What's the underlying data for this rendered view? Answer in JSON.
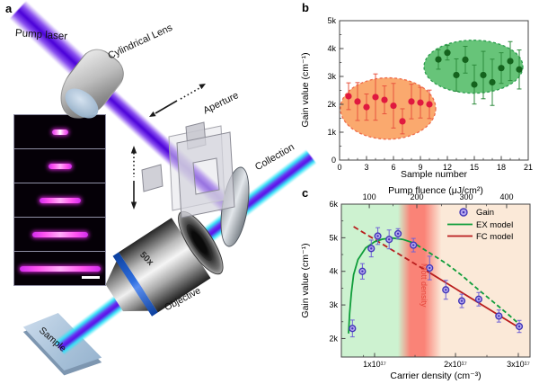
{
  "figure": {
    "panel_a": {
      "label": "a",
      "labels": {
        "pump_laser": "Pump laser",
        "cylindrical_lens": "Cylindrical Lens",
        "aperture": "Aperture",
        "collection": "Collection",
        "objective_mag": "50x",
        "objective": "Objective",
        "sample": "Sample"
      },
      "inset": {
        "stripe_count": 5,
        "has_scale_bar": true
      }
    },
    "panel_b": {
      "label": "b"
    },
    "panel_c": {
      "label": "c"
    }
  },
  "colors": {
    "beam_purple": "#5a10e8",
    "beam_cyan": "#35e3f7",
    "red_point": "#e0193f",
    "orange_ellipse": "#f9a05e",
    "green_point": "#14631d",
    "green_ellipse": "#5abf6e",
    "gain_marker_fill": "#b7a8ef",
    "gain_marker_stroke": "#4338b8",
    "ex_green": "#0f9d3a",
    "fc_red": "#b91d1d"
  },
  "chart_data": [
    {
      "id": "b",
      "type": "scatter",
      "xlabel": "Sample number",
      "ylabel": "Gain value (cm⁻¹)",
      "xlim": [
        0,
        21
      ],
      "ylim": [
        0,
        5000
      ],
      "grid": false,
      "x_ticks": [
        {
          "v": 0,
          "label": "0"
        },
        {
          "v": 3,
          "label": "3"
        },
        {
          "v": 6,
          "label": "6"
        },
        {
          "v": 9,
          "label": "9"
        },
        {
          "v": 12,
          "label": "12"
        },
        {
          "v": 15,
          "label": "15"
        },
        {
          "v": 18,
          "label": "18"
        },
        {
          "v": 21,
          "label": "21"
        }
      ],
      "y_ticks": [
        {
          "v": 0,
          "label": "0"
        },
        {
          "v": 1000,
          "label": "1k"
        },
        {
          "v": 2000,
          "label": "2k"
        },
        {
          "v": 3000,
          "label": "3k"
        },
        {
          "v": 4000,
          "label": "4k"
        },
        {
          "v": 5000,
          "label": "5k"
        }
      ],
      "series": [
        {
          "name": "samples 1-10",
          "marker_color": "#e0193f",
          "err_color": "#e8543f",
          "points": [
            {
              "x": 1,
              "y": 2290,
              "e": 480
            },
            {
              "x": 2,
              "y": 2100,
              "e": 680
            },
            {
              "x": 3,
              "y": 1900,
              "e": 470
            },
            {
              "x": 4,
              "y": 2260,
              "e": 830
            },
            {
              "x": 5,
              "y": 2160,
              "e": 500
            },
            {
              "x": 6,
              "y": 1950,
              "e": 800
            },
            {
              "x": 7,
              "y": 1390,
              "e": 450
            },
            {
              "x": 8,
              "y": 2100,
              "e": 620
            },
            {
              "x": 9,
              "y": 2060,
              "e": 550
            },
            {
              "x": 10,
              "y": 2000,
              "e": 510
            }
          ]
        },
        {
          "name": "samples 11-20",
          "marker_color": "#14631d",
          "err_color": "#2e8b3d",
          "points": [
            {
              "x": 11,
              "y": 3610,
              "e": 350
            },
            {
              "x": 12,
              "y": 3850,
              "e": 260
            },
            {
              "x": 13,
              "y": 3050,
              "e": 580
            },
            {
              "x": 14,
              "y": 3600,
              "e": 480
            },
            {
              "x": 15,
              "y": 2710,
              "e": 700
            },
            {
              "x": 16,
              "y": 3050,
              "e": 850
            },
            {
              "x": 17,
              "y": 2790,
              "e": 830
            },
            {
              "x": 18,
              "y": 3300,
              "e": 550
            },
            {
              "x": 19,
              "y": 3550,
              "e": 700
            },
            {
              "x": 20,
              "y": 3250,
              "e": 700
            }
          ]
        }
      ],
      "ellipses": [
        {
          "cx": 5.4,
          "cy": 1850,
          "rx": 5.3,
          "ry": 1100,
          "fill": "#f9a05e",
          "stroke": "#ef6a4a",
          "opacity": 0.9
        },
        {
          "cx": 14.9,
          "cy": 3350,
          "rx": 5.5,
          "ry": 950,
          "fill": "#5abf6e",
          "stroke": "#2d9e4f",
          "opacity": 0.92
        }
      ]
    },
    {
      "id": "c",
      "type": "scatter+line",
      "top_xlabel": "Pump fluence (μJ/cm²)",
      "xlabel": "Carrier density (cm⁻³)",
      "ylabel": "Gain value (cm⁻¹)",
      "x_unit": "×10¹⁷ cm⁻³",
      "ylim": [
        1450,
        6000
      ],
      "grid": false,
      "y_ticks": [
        {
          "v": 2000,
          "label": "2k"
        },
        {
          "v": 3000,
          "label": "3k"
        },
        {
          "v": 4000,
          "label": "4k"
        },
        {
          "v": 5000,
          "label": "5k"
        },
        {
          "v": 6000,
          "label": "6k"
        }
      ],
      "x_ticks": [
        {
          "v": 1,
          "label": "1x10¹⁷"
        },
        {
          "v": 2,
          "label": "2x10¹⁷"
        },
        {
          "v": 3,
          "label": "3x10¹⁷"
        }
      ],
      "x_minor_ticks": [
        0.9,
        1.5,
        2.5
      ],
      "top_ticks": [
        {
          "label": "100",
          "f": 0.148
        },
        {
          "label": "200",
          "f": 0.4
        },
        {
          "label": "300",
          "f": 0.662
        },
        {
          "label": "400",
          "f": 0.876
        }
      ],
      "top_minor_ticks": [
        0.274,
        0.531,
        0.769
      ],
      "x_anchor_map": [
        [
          0.7,
          0.0
        ],
        [
          1.0,
          0.176
        ],
        [
          2.0,
          0.605
        ],
        [
          3.0,
          0.938
        ],
        [
          3.25,
          1.0
        ]
      ],
      "regions": [
        {
          "offset": 0,
          "color": "#cdf2d0"
        },
        {
          "offset": 0.3,
          "color": "#cdf2d0"
        },
        {
          "offset": 0.365,
          "color": "#fa8377"
        },
        {
          "offset": 0.44,
          "color": "#fa8377"
        },
        {
          "offset": 0.53,
          "color": "#fbe9d8"
        },
        {
          "offset": 1,
          "color": "#fbe9d8"
        }
      ],
      "mott": {
        "label": "Mott density",
        "color": "#e6483d"
      },
      "legend_position": "top-right",
      "legend": [
        {
          "label": "Gain",
          "type": "marker"
        },
        {
          "label": "EX model",
          "type": "line",
          "color": "#0f9d3a"
        },
        {
          "label": "FC model",
          "type": "line",
          "color": "#b91d1d"
        }
      ],
      "gain": {
        "marker_fill": "#b7a8ef",
        "marker_stroke": "#4338b8",
        "err_color": "#6f61d6",
        "points": [
          {
            "x": 0.8,
            "y": 2300,
            "e": 250
          },
          {
            "x": 0.89,
            "y": 4000,
            "e": 230
          },
          {
            "x": 0.97,
            "y": 4680,
            "e": 250
          },
          {
            "x": 1.04,
            "y": 5050,
            "e": 250
          },
          {
            "x": 1.18,
            "y": 4950,
            "e": 280
          },
          {
            "x": 1.29,
            "y": 5120,
            "e": 150
          },
          {
            "x": 1.48,
            "y": 4780,
            "e": 200
          },
          {
            "x": 1.68,
            "y": 4100,
            "e": 350
          },
          {
            "x": 1.88,
            "y": 3450,
            "e": 280
          },
          {
            "x": 2.1,
            "y": 3120,
            "e": 200
          },
          {
            "x": 2.37,
            "y": 3170,
            "e": 200
          },
          {
            "x": 2.69,
            "y": 2670,
            "e": 180
          },
          {
            "x": 3.02,
            "y": 2360,
            "e": 180
          }
        ]
      },
      "ex_model": {
        "color": "#0f9d3a",
        "solid": [
          [
            0.765,
            2150
          ],
          [
            0.775,
            2750
          ],
          [
            0.79,
            3350
          ],
          [
            0.81,
            3900
          ],
          [
            0.85,
            4350
          ],
          [
            0.92,
            4700
          ],
          [
            1.0,
            4880
          ],
          [
            1.1,
            4960
          ],
          [
            1.22,
            4990
          ],
          [
            1.35,
            4950
          ],
          [
            1.45,
            4870
          ],
          [
            1.52,
            4790
          ]
        ],
        "dashed": [
          [
            1.52,
            4790
          ],
          [
            1.7,
            4520
          ],
          [
            1.9,
            4210
          ],
          [
            2.1,
            3880
          ],
          [
            2.35,
            3480
          ],
          [
            2.6,
            3090
          ],
          [
            2.85,
            2700
          ],
          [
            3.05,
            2390
          ]
        ]
      },
      "fc_model": {
        "color": "#b91d1d",
        "dashed": [
          [
            0.81,
            5330
          ],
          [
            1.67,
            3975
          ]
        ],
        "solid": [
          [
            1.67,
            3975
          ],
          [
            3.01,
            2330
          ]
        ]
      }
    }
  ]
}
